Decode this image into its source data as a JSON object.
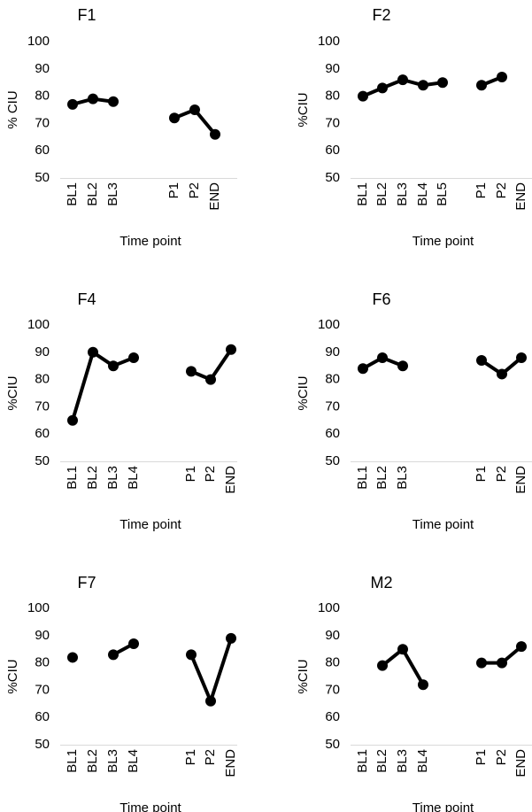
{
  "chart_data": [
    {
      "type": "line",
      "title": "F1",
      "xlabel": "Time point",
      "ylabel": "% CIU",
      "ylim": [
        50,
        100
      ],
      "yticks": [
        50,
        60,
        70,
        80,
        90,
        100
      ],
      "categories": [
        "BL1",
        "BL2",
        "BL3",
        "",
        "",
        "P1",
        "P2",
        "END"
      ],
      "values": [
        77,
        79,
        78,
        null,
        null,
        72,
        75,
        66
      ],
      "grid": false,
      "line_color": "#000000"
    },
    {
      "type": "line",
      "title": "F2",
      "xlabel": "Time point",
      "ylabel": "%CIU",
      "ylim": [
        50,
        100
      ],
      "yticks": [
        50,
        60,
        70,
        80,
        90,
        100
      ],
      "categories": [
        "BL1",
        "BL2",
        "BL3",
        "BL4",
        "BL5",
        "",
        "P1",
        "P2",
        "END"
      ],
      "values": [
        80,
        83,
        86,
        84,
        85,
        null,
        84,
        87,
        null
      ],
      "grid": false,
      "line_color": "#000000"
    },
    {
      "type": "line",
      "title": "F4",
      "xlabel": "Time point",
      "ylabel": "%CIU",
      "ylim": [
        50,
        100
      ],
      "yticks": [
        50,
        60,
        70,
        80,
        90,
        100
      ],
      "categories": [
        "BL1",
        "BL2",
        "BL3",
        "BL4",
        "",
        "P1",
        "P2",
        "END"
      ],
      "values": [
        65,
        90,
        85,
        88,
        null,
        83,
        80,
        91
      ],
      "grid": false,
      "line_color": "#000000"
    },
    {
      "type": "line",
      "title": "F6",
      "xlabel": "Time point",
      "ylabel": "%CIU",
      "ylim": [
        50,
        100
      ],
      "yticks": [
        50,
        60,
        70,
        80,
        90,
        100
      ],
      "categories": [
        "BL1",
        "BL2",
        "BL3",
        "",
        "",
        "P1",
        "P2",
        "END"
      ],
      "values": [
        84,
        88,
        85,
        null,
        null,
        87,
        82,
        88
      ],
      "grid": false,
      "line_color": "#000000"
    },
    {
      "type": "line",
      "title": "F7",
      "xlabel": "Time point",
      "ylabel": "%CIU",
      "ylim": [
        50,
        100
      ],
      "yticks": [
        50,
        60,
        70,
        80,
        90,
        100
      ],
      "categories": [
        "BL1",
        "BL2",
        "BL3",
        "BL4",
        "",
        "P1",
        "P2",
        "END"
      ],
      "values": [
        82,
        null,
        83,
        87,
        null,
        83,
        66,
        89
      ],
      "grid": false,
      "line_color": "#000000"
    },
    {
      "type": "line",
      "title": "M2",
      "xlabel": "Time point",
      "ylabel": "%CIU",
      "ylim": [
        50,
        100
      ],
      "yticks": [
        50,
        60,
        70,
        80,
        90,
        100
      ],
      "categories": [
        "BL1",
        "BL2",
        "BL3",
        "BL4",
        "",
        "P1",
        "P2",
        "END"
      ],
      "values": [
        null,
        79,
        85,
        72,
        null,
        80,
        80,
        86
      ],
      "grid": false,
      "line_color": "#000000"
    }
  ]
}
